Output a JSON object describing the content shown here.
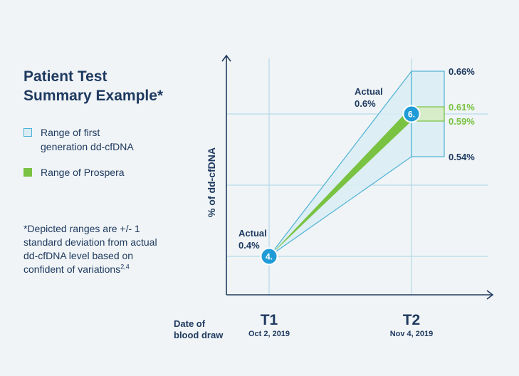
{
  "header": {
    "title_lines": [
      "Patient Test",
      "Summary Example*"
    ]
  },
  "legend": {
    "items": [
      {
        "lines": [
          "Range of first",
          "generation dd-cfDNA"
        ],
        "color": "#d9ecf5",
        "border": "#4cb2d4"
      },
      {
        "lines": [
          "Range of Prospera"
        ],
        "color": "#79c242"
      }
    ]
  },
  "footnote": {
    "lines": [
      "*Depicted ranges are +/- 1",
      "standard deviation from actual",
      "dd-cfDNA level based on",
      "confident of variations"
    ],
    "superscript": "2,4"
  },
  "chart_data": {
    "type": "area",
    "xlabel": "Date of blood draw",
    "xlabel_lines": [
      "Date of",
      "blood draw"
    ],
    "ylabel": "% of dd-cfDNA",
    "x": [
      {
        "label": "T1",
        "date": "Oct 2, 2019"
      },
      {
        "label": "T2",
        "date": "Nov 4, 2019"
      }
    ],
    "actual": {
      "values": [
        0.4,
        0.6
      ],
      "labels": [
        [
          "Actual",
          "0.4%"
        ],
        [
          "Actual",
          "0.6%"
        ]
      ],
      "markers": [
        "4.",
        "6."
      ]
    },
    "series": [
      {
        "name": "Range of first generation dd-cfDNA",
        "low": [
          0.4,
          0.54
        ],
        "high": [
          0.4,
          0.66
        ],
        "color": "#d9ecf5",
        "stroke": "#4cb2d4"
      },
      {
        "name": "Range of Prospera",
        "low": [
          0.4,
          0.59
        ],
        "high": [
          0.4,
          0.61
        ],
        "color": "#79c242"
      }
    ],
    "end_labels": [
      {
        "text": "0.66%",
        "value": 0.66,
        "color": "#1f3a60"
      },
      {
        "text": "0.61%",
        "value": 0.61,
        "color": "#79c242"
      },
      {
        "text": "0.59%",
        "value": 0.59,
        "color": "#79c242"
      },
      {
        "text": "0.54%",
        "value": 0.54,
        "color": "#1f3a60"
      }
    ],
    "gridlines_y": [
      0.4,
      0.5,
      0.6
    ],
    "ylim": [
      0.35,
      0.68
    ],
    "grid": true,
    "colors": {
      "text": "#1f3a60",
      "grid": "#a8d4e6",
      "marker": "#1f9bd7",
      "axis": "#1f3a60"
    }
  }
}
